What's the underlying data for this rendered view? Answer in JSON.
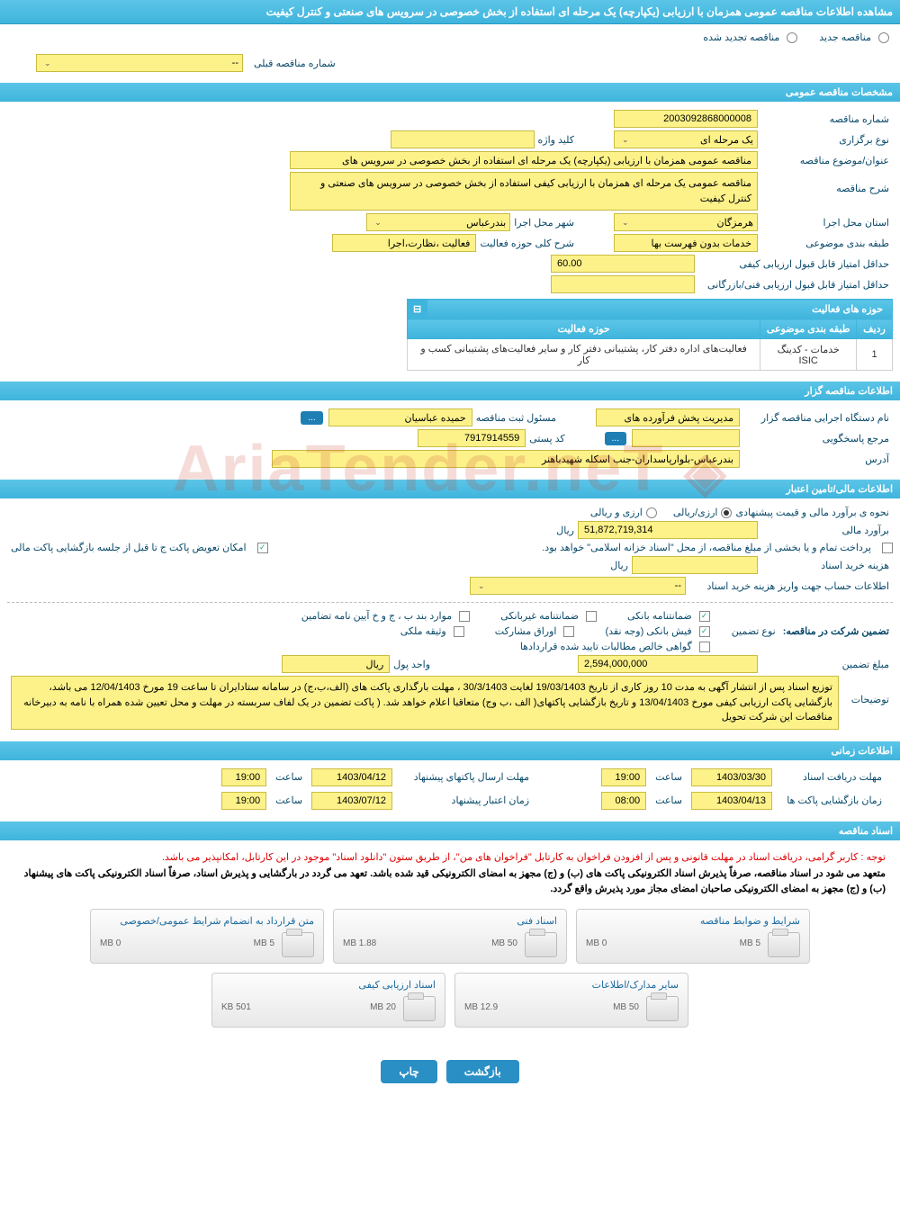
{
  "header": "مشاهده اطلاعات مناقصه عمومی همزمان با ارزیابی (یکپارچه) یک مرحله ای استفاده از بخش خصوصی در سرویس های صنعتی و کنترل کیفیت",
  "radios": {
    "new": "مناقصه جدید",
    "renew": "مناقصه تجدید شده"
  },
  "prev_label": "شماره مناقصه قبلی",
  "prev_value": "--",
  "sec_general": "مشخصات مناقصه عمومی",
  "tender_no_label": "شماره مناقصه",
  "tender_no": "2003092868000008",
  "keyword_label": "کلید واژه",
  "hold_type_label": "نوع برگزاری",
  "hold_type": "یک مرحله ای",
  "subject_label": "عنوان/موضوع مناقصه",
  "subject": "مناقصه عمومی همزمان با ارزیابی (یکپارچه) یک مرحله ای استفاده از بخش خصوصی در سرویس های",
  "desc_label": "شرح مناقصه",
  "desc": "مناقصه عمومی یک مرحله ای همزمان با ارزیابی کیفی استفاده از بخش خصوصی در سرویس های صنعتی و کنترل کیفیت",
  "province_label": "استان محل اجرا",
  "province": "هرمزگان",
  "city_label": "شهر محل اجرا",
  "city": "بندرعباس",
  "class_label": "طبقه بندی موضوعی",
  "class_val": "خدمات بدون فهرست بها",
  "scope_label": "شرح کلی حوزه فعالیت",
  "scope_val": "فعالیت ،نظارت،اجرا",
  "min_qual_label": "حداقل امتیاز قابل قبول ارزیابی کیفی",
  "min_qual": "60.00",
  "min_tech_label": "حداقل امتیاز قابل قبول ارزیابی فنی/بازرگانی",
  "activity_table": {
    "title": "حوزه های فعالیت",
    "cols": [
      "ردیف",
      "طبقه بندی موضوعی",
      "حوزه فعالیت"
    ],
    "row": [
      "1",
      "خدمات - کدینگ ISIC",
      "فعالیت‌های  اداره دفتر کار، پشتیبانی دفتر کار و سایر فعالیت‌های پشتیبانی کسب و کار"
    ]
  },
  "sec_holder": "اطلاعات مناقصه گزار",
  "org_label": "نام دستگاه اجرایی مناقصه گزار",
  "org_val": "مدیریت پخش فرآورده های",
  "registrar_label": "مسئول ثبت مناقصه",
  "registrar_val": "حمیده عباسیان",
  "more_btn": "...",
  "ref_label": "مرجع پاسخگویی",
  "postal_label": "کد پستی",
  "postal_val": "7917914559",
  "address_label": "آدرس",
  "address_val": "بندرعباس-بلوارپاسداران-جنب اسکله شهیدباهنر",
  "sec_finance": "اطلاعات مالی/تامین اعتبار",
  "price_type_label": "نحوه ی برآورد مالی و قیمت پیشنهادی",
  "price_type_opt1": "ارزی/ریالی",
  "price_type_opt2": "ارزی و ریالی",
  "estimate_label": "برآورد مالی",
  "estimate_val": "51,872,719,314",
  "currency": "ریال",
  "payment_note": "پرداخت تمام و یا بخشی از مبلغ مناقصه، از محل \"اسناد خزانه اسلامی\" خواهد بود.",
  "swap_note": "امکان تعویض پاکت ج تا قبل از جلسه بازگشایی پاکت مالی",
  "doc_cost_label": "هزینه خرید اسناد",
  "acct_label": "اطلاعات حساب جهت واریز هزینه خرید اسناد",
  "acct_val": "--",
  "guarantee_title": "تضمین شرکت در مناقصه:",
  "guarantee_type_label": "نوع تضمین",
  "g1": "ضمانتنامه بانکی",
  "g2": "ضمانتنامه غیربانکی",
  "g3": "موارد بند ب ، ج و خ آیین نامه تضامین",
  "g4": "فیش بانکی (وجه نقد)",
  "g5": "اوراق مشارکت",
  "g6": "وثیقه ملکی",
  "g7": "گواهی خالص مطالبات تایید شده قراردادها",
  "g_amount_label": "مبلغ تضمین",
  "g_amount": "2,594,000,000",
  "g_unit_label": "واحد پول",
  "notes_label": "توضیحات",
  "notes": "توزیع اسناد پس از انتشار آگهی به مدت 10 روز کاری از تاریخ 19/03/1403 لغایت 30/3/1403 ، مهلت بارگذاری پاکت های (الف،ب،ج) در سامانه ستادایران تا ساعت 19 مورخ 12/04/1403 می باشد، بازگشایی پاکت ارزیابی کیفی مورخ 13/04/1403 و تاریخ بازگشایی پاکتهای( الف ،ب وج) متعاقبا اعلام خواهد شد. ( پاکت تضمین در یک لفاف سربسته در مهلت و محل تعیین شده همراه با نامه به دبیرخانه مناقصات این شرکت تحویل",
  "sec_time": "اطلاعات زمانی",
  "t1_label": "مهلت دریافت اسناد",
  "t1_date": "1403/03/30",
  "t1_time": "19:00",
  "t2_label": "مهلت ارسال پاکتهای پیشنهاد",
  "t2_date": "1403/04/12",
  "t2_time": "19:00",
  "t3_label": "زمان بازگشایی پاکت ها",
  "t3_date": "1403/04/13",
  "t3_time": "08:00",
  "t4_label": "زمان اعتبار پیشنهاد",
  "t4_date": "1403/07/12",
  "t4_time": "19:00",
  "time_word": "ساعت",
  "sec_docs": "اسناد مناقصه",
  "doc_warn": "توجه : کاربر گرامی، دریافت اسناد در مهلت قانونی و پس از افزودن فراخوان به کارتابل \"فراخوان های من\"، از طریق ستون \"دانلود اسناد\" موجود در این کارتابل، امکانپذیر می باشد.",
  "doc_note": "متعهد می شود در اسناد مناقصه، صرفاً پذیرش اسناد الکترونیکی پاکت های (ب) و (ج) مجهز به امضای الکترونیکی قید شده باشد. تعهد می گردد در بارگشایی و پذیرش اسناد، صرفاً اسناد الکترونیکی پاکت های پیشنهاد (ب) و (ج) مجهز به امضای الکترونیکی صاحبان امضای مجاز مورد پذیرش واقع گردد.",
  "files": [
    {
      "name": "شرایط و ضوابط مناقصه",
      "used": "0 MB",
      "total": "5 MB",
      "pct": 2
    },
    {
      "name": "اسناد فنی",
      "used": "1.88 MB",
      "total": "50 MB",
      "pct": 5
    },
    {
      "name": "متن قرارداد به انضمام شرایط عمومی/خصوصی",
      "used": "0 MB",
      "total": "5 MB",
      "pct": 2
    },
    {
      "name": "سایر مدارک/اطلاعات",
      "used": "12.9 MB",
      "total": "50 MB",
      "pct": 26
    },
    {
      "name": "اسناد ارزیابی کیفی",
      "used": "501 KB",
      "total": "20 MB",
      "pct": 4
    }
  ],
  "btn_back": "بازگشت",
  "btn_print": "چاپ",
  "watermark": "AriaTender.neT"
}
